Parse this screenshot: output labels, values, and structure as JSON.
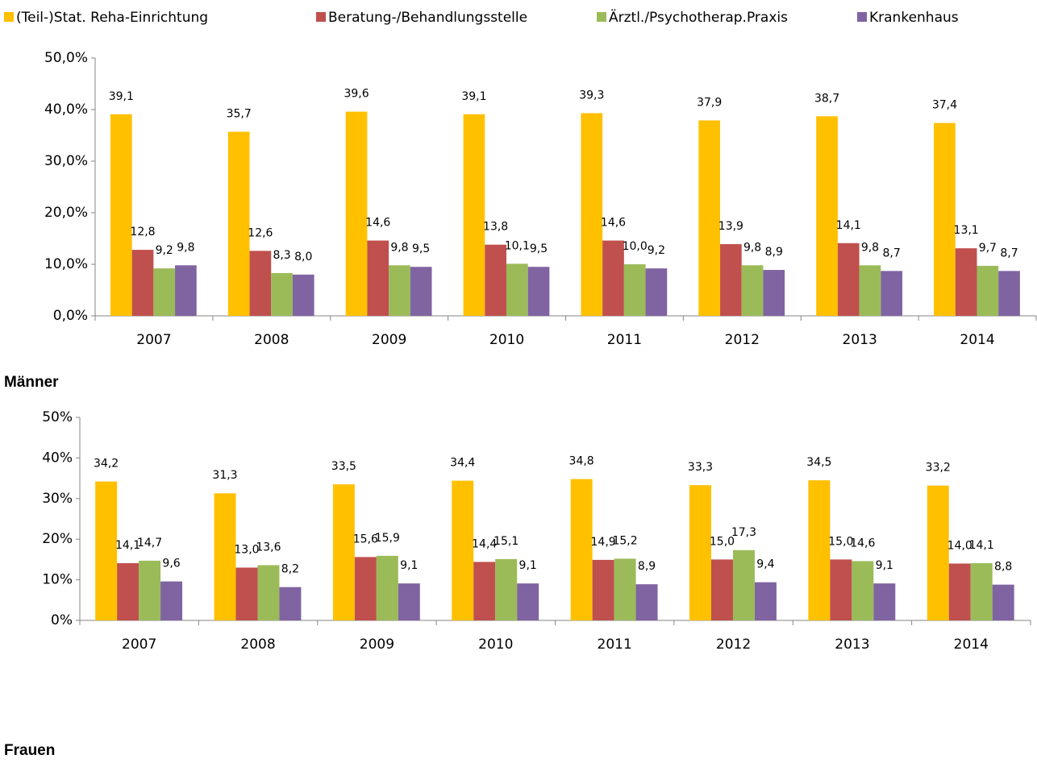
{
  "chart_data": [
    {
      "type": "bar",
      "title": "Männer",
      "categories": [
        "2007",
        "2008",
        "2009",
        "2010",
        "2011",
        "2012",
        "2013",
        "2014"
      ],
      "ylim": [
        0,
        50
      ],
      "yticks": [
        {
          "value": 0,
          "label": "0,0%"
        },
        {
          "value": 10,
          "label": "10,0%"
        },
        {
          "value": 20,
          "label": "20,0%"
        },
        {
          "value": 30,
          "label": "30,0%"
        },
        {
          "value": 40,
          "label": "40,0%"
        },
        {
          "value": 50,
          "label": "50,0%"
        }
      ],
      "grid": false,
      "series": [
        {
          "name": "(Teil-)Stat. Reha-Einrichtung",
          "color": "#FFC000",
          "values": [
            39.1,
            35.7,
            39.6,
            39.1,
            39.3,
            37.9,
            38.7,
            37.4
          ],
          "value_labels": [
            "39,1",
            "35,7",
            "39,6",
            "39,1",
            "39,3",
            "37,9",
            "38,7",
            "37,4"
          ]
        },
        {
          "name": "Beratung-/Behandlungsstelle",
          "color": "#C0504D",
          "values": [
            12.8,
            12.6,
            14.6,
            13.8,
            14.6,
            13.9,
            14.1,
            13.1
          ],
          "value_labels": [
            "12,8",
            "12,6",
            "14,6",
            "13,8",
            "14,6",
            "13,9",
            "14,1",
            "13,1"
          ]
        },
        {
          "name": "Ärztl./Psychotherap.Praxis",
          "color": "#9BBB59",
          "values": [
            9.2,
            8.3,
            9.8,
            10.1,
            10.0,
            9.8,
            9.8,
            9.7
          ],
          "value_labels": [
            "9,2",
            "8,3",
            "9,8",
            "10,1",
            "10,0",
            "9,8",
            "9,8",
            "9,7"
          ]
        },
        {
          "name": "Krankenhaus",
          "color": "#8064A2",
          "values": [
            9.8,
            8.0,
            9.5,
            9.5,
            9.2,
            8.9,
            8.7,
            8.7
          ],
          "value_labels": [
            "9,8",
            "8,0",
            "9,5",
            "9,5",
            "9,2",
            "8,9",
            "8,7",
            "8,7"
          ]
        }
      ]
    },
    {
      "type": "bar",
      "title": "Frauen",
      "categories": [
        "2007",
        "2008",
        "2009",
        "2010",
        "2011",
        "2012",
        "2013",
        "2014"
      ],
      "ylim": [
        0,
        50
      ],
      "yticks": [
        {
          "value": 0,
          "label": "0%"
        },
        {
          "value": 10,
          "label": "10%"
        },
        {
          "value": 20,
          "label": "20%"
        },
        {
          "value": 30,
          "label": "30%"
        },
        {
          "value": 40,
          "label": "40%"
        },
        {
          "value": 50,
          "label": "50%"
        }
      ],
      "grid": false,
      "series": [
        {
          "color": "#FFC000",
          "values": [
            34.2,
            31.3,
            33.5,
            34.4,
            34.8,
            33.3,
            34.5,
            33.2
          ],
          "value_labels": [
            "34,2",
            "31,3",
            "33,5",
            "34,4",
            "34,8",
            "33,3",
            "34,5",
            "33,2"
          ]
        },
        {
          "color": "#C0504D",
          "values": [
            14.1,
            13.0,
            15.6,
            14.4,
            14.9,
            15.0,
            15.0,
            14.0
          ],
          "value_labels": [
            "14,1",
            "13,0",
            "15,6",
            "14,4",
            "14,9",
            "15,0",
            "15,0",
            "14,0"
          ]
        },
        {
          "color": "#9BBB59",
          "values": [
            14.7,
            13.6,
            15.9,
            15.1,
            15.2,
            17.3,
            14.6,
            14.1
          ],
          "value_labels": [
            "14,7",
            "13,6",
            "15,9",
            "15,1",
            "15,2",
            "17,3",
            "14,6",
            "14,1"
          ]
        },
        {
          "color": "#8064A2",
          "values": [
            9.6,
            8.2,
            9.1,
            9.1,
            8.9,
            9.4,
            9.1,
            8.8
          ],
          "value_labels": [
            "9,6",
            "8,2",
            "9,1",
            "9,1",
            "8,9",
            "9,4",
            "9,1",
            "8,8"
          ]
        }
      ]
    }
  ]
}
